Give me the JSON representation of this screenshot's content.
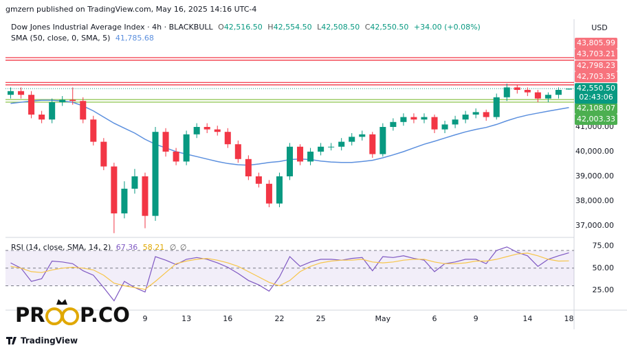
{
  "header": {
    "publisher": "gmzern published on TradingView.com, May 16, 2025 14:16 UTC-4",
    "symbol": "Dow Jones Industrial Average Index · 4h · BLACKBULL",
    "ohlc": [
      {
        "key": "O",
        "value": "42,516.50"
      },
      {
        "key": "H",
        "value": "42,554.50"
      },
      {
        "key": "L",
        "value": "42,508.50"
      },
      {
        "key": "C",
        "value": "42,550.50"
      }
    ],
    "change": "+34.00 (+0.08%)"
  },
  "currency": "USD",
  "watermark": [
    "PR",
    "P.CO"
  ],
  "footer": "TradingView",
  "chart_data": [
    {
      "type": "candlestick",
      "categories": [
        null,
        null,
        null,
        null,
        null,
        null,
        null,
        null,
        null,
        null,
        null,
        null,
        null,
        "9",
        null,
        null,
        null,
        "13",
        null,
        null,
        null,
        "16",
        null,
        null,
        null,
        null,
        "22",
        null,
        null,
        null,
        "25",
        null,
        null,
        null,
        null,
        null,
        "May",
        null,
        null,
        null,
        null,
        "6",
        null,
        null,
        null,
        "9",
        null,
        null,
        null,
        null,
        "14",
        null,
        null,
        null,
        "18"
      ],
      "open": [
        42300,
        42450,
        42300,
        41500,
        41300,
        42000,
        42100,
        42050,
        41300,
        40400,
        39400,
        37500,
        38500,
        39000,
        37400,
        40800,
        40000,
        39600,
        40700,
        41000,
        40900,
        40800,
        40300,
        39700,
        39000,
        38700,
        37900,
        39000,
        40200,
        39600,
        40000,
        40200,
        40200,
        40400,
        40600,
        40700,
        39900,
        41000,
        41200,
        41400,
        41300,
        41400,
        40900,
        41100,
        41300,
        41500,
        41600,
        41400,
        42200,
        42600,
        42500,
        42400,
        42150,
        42300,
        42516.5
      ],
      "high": [
        42600,
        42600,
        42450,
        41650,
        42150,
        42250,
        42600,
        42200,
        41450,
        40550,
        39550,
        38800,
        39300,
        39150,
        41000,
        40950,
        40150,
        40850,
        41150,
        41150,
        41050,
        40950,
        40450,
        39850,
        39150,
        38850,
        39150,
        40350,
        40300,
        40150,
        40350,
        40350,
        40550,
        40750,
        40850,
        40800,
        41150,
        41350,
        41550,
        41550,
        41550,
        41500,
        41250,
        41450,
        41650,
        41750,
        41700,
        42350,
        42750,
        42700,
        42600,
        42500,
        42400,
        42600,
        42554.5
      ],
      "low": [
        42150,
        42150,
        41350,
        41150,
        41150,
        41850,
        41900,
        41150,
        40250,
        39250,
        36700,
        37300,
        38300,
        36900,
        37200,
        39800,
        39450,
        39450,
        40550,
        40750,
        40650,
        40150,
        39550,
        38850,
        38550,
        37750,
        37750,
        38850,
        39450,
        39450,
        39850,
        40050,
        40050,
        40250,
        40450,
        39750,
        39800,
        40850,
        41050,
        41150,
        41150,
        40750,
        40750,
        40950,
        41150,
        41350,
        41250,
        41300,
        42050,
        42350,
        42250,
        42000,
        42000,
        42150,
        42508.5
      ],
      "close": [
        42450,
        42300,
        41500,
        41300,
        42000,
        42100,
        42050,
        41300,
        40400,
        39400,
        37500,
        38500,
        39000,
        37400,
        40800,
        40000,
        39600,
        40700,
        41000,
        40900,
        40800,
        40300,
        39700,
        39000,
        38700,
        37900,
        39000,
        40200,
        39600,
        40000,
        40200,
        40200,
        40400,
        40600,
        40700,
        39900,
        41000,
        41200,
        41400,
        41300,
        41400,
        40900,
        41100,
        41300,
        41500,
        41600,
        41400,
        42200,
        42600,
        42500,
        42400,
        42150,
        42300,
        42500,
        42550.5
      ],
      "up_color": "#089981",
      "down_color": "#f23645",
      "ylim": [
        36556,
        45305
      ],
      "yticks": [
        {
          "value": 37000,
          "label": "37,000.00"
        },
        {
          "value": 38000,
          "label": "38,000.00"
        },
        {
          "value": 39000,
          "label": "39,000.00"
        },
        {
          "value": 40000,
          "label": "40,000.00"
        },
        {
          "value": 41000,
          "label": "41,000.00"
        }
      ],
      "series": [
        {
          "name": "SMA (50, close, 0, SMA, 5)",
          "color": "#5b8fde",
          "last_label": "41,785.68",
          "values": [
            41950,
            42000,
            42050,
            42080,
            42080,
            42050,
            42000,
            41850,
            41650,
            41400,
            41150,
            40950,
            40750,
            40500,
            40300,
            40150,
            40000,
            39900,
            39800,
            39700,
            39600,
            39520,
            39470,
            39450,
            39500,
            39560,
            39600,
            39680,
            39700,
            39680,
            39620,
            39580,
            39560,
            39560,
            39600,
            39650,
            39750,
            39870,
            40000,
            40150,
            40300,
            40420,
            40550,
            40680,
            40800,
            40900,
            40980,
            41100,
            41250,
            41380,
            41480,
            41560,
            41640,
            41710,
            41785.68
          ]
        }
      ],
      "levels": [
        {
          "value": 43805.99,
          "label": "43,805.99",
          "color": "#f23645",
          "box": "#f7737d"
        },
        {
          "value": 43703.21,
          "label": "43,703.21",
          "color": "#f23645",
          "box": "#f7737d"
        },
        {
          "value": 42798.23,
          "label": "42,798.23",
          "color": "#f23645",
          "box": "#f7737d"
        },
        {
          "value": 42703.35,
          "label": "42,703.35",
          "color": "#f23645",
          "box": "#f7737d"
        },
        {
          "value": 42108.07,
          "label": "42,108.07",
          "color": "#8bc34a",
          "box": "#4caf50"
        },
        {
          "value": 42003.33,
          "label": "42,003.33",
          "color": "#8bc34a",
          "box": "#4caf50"
        }
      ],
      "last": {
        "value": 42550.5,
        "label": "42,550.50",
        "countdown": "02:43:06",
        "color": "#089981"
      }
    },
    {
      "type": "line",
      "title": "RSI (14, close, SMA, 14, 2)",
      "extra": [
        "∅",
        "∅"
      ],
      "series": [
        {
          "color": "#7e57c2",
          "last_label": "67.36",
          "values": [
            56,
            50,
            35,
            38,
            58,
            57,
            55,
            47,
            42,
            28,
            13,
            35,
            28,
            23,
            63,
            59,
            54,
            60,
            62,
            60,
            56,
            51,
            44,
            36,
            31,
            24,
            40,
            63,
            52,
            57,
            60,
            60,
            59,
            61,
            62,
            47,
            63,
            62,
            64,
            61,
            59,
            46,
            55,
            57,
            60,
            60,
            55,
            70,
            74,
            68,
            64,
            52,
            60,
            64,
            67.36
          ]
        },
        {
          "color": "#f7c548",
          "last_label": "58.21",
          "values": [
            52,
            50,
            46,
            45,
            48,
            50,
            51,
            50,
            48,
            42,
            33,
            30,
            28,
            26,
            35,
            45,
            55,
            58,
            60,
            61,
            59,
            56,
            52,
            46,
            40,
            34,
            30,
            36,
            46,
            52,
            56,
            58,
            59,
            59,
            60,
            57,
            56,
            57,
            59,
            60,
            60,
            57,
            55,
            55,
            56,
            58,
            58,
            60,
            63,
            66,
            67,
            64,
            60,
            58,
            58.21
          ]
        }
      ],
      "band": [
        30,
        70
      ],
      "levels": [
        70,
        50,
        30
      ],
      "ylim": [
        4,
        84
      ],
      "yticks": [
        {
          "value": 75,
          "label": "75.00"
        },
        {
          "value": 50,
          "label": "50.00"
        },
        {
          "value": 25,
          "label": "25.00"
        }
      ]
    }
  ]
}
